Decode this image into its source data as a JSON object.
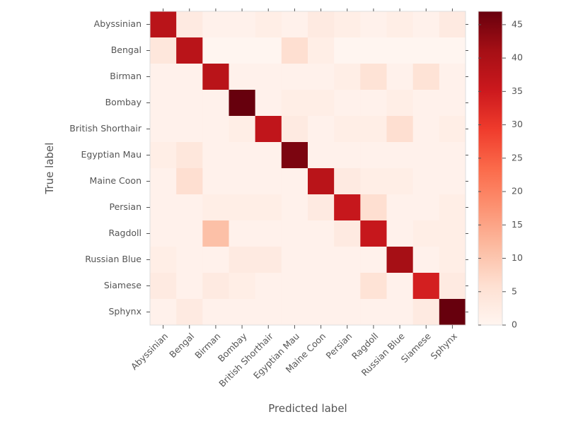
{
  "chart_data": {
    "type": "heatmap",
    "title": "",
    "xlabel": "Predicted label",
    "ylabel": "True label",
    "categories": [
      "Abyssinian",
      "Bengal",
      "Birman",
      "Bombay",
      "British Shorthair",
      "Egyptian Mau",
      "Maine Coon",
      "Persian",
      "Ragdoll",
      "Russian Blue",
      "Siamese",
      "Sphynx"
    ],
    "matrix": [
      [
        38,
        3,
        1,
        1,
        2,
        1,
        3,
        2,
        1,
        2,
        1,
        3
      ],
      [
        4,
        38,
        0,
        0,
        0,
        6,
        2,
        0,
        0,
        0,
        0,
        0
      ],
      [
        1,
        1,
        38,
        1,
        1,
        1,
        1,
        2,
        5,
        1,
        5,
        1
      ],
      [
        1,
        1,
        1,
        47,
        1,
        2,
        2,
        1,
        1,
        2,
        1,
        1
      ],
      [
        1,
        1,
        1,
        2,
        37,
        3,
        1,
        2,
        2,
        6,
        1,
        2
      ],
      [
        2,
        4,
        1,
        1,
        1,
        45,
        1,
        1,
        1,
        1,
        1,
        1
      ],
      [
        1,
        6,
        1,
        1,
        1,
        1,
        38,
        3,
        2,
        2,
        1,
        1
      ],
      [
        1,
        1,
        2,
        2,
        2,
        1,
        3,
        36,
        6,
        1,
        1,
        2
      ],
      [
        1,
        1,
        11,
        1,
        1,
        1,
        1,
        3,
        36,
        1,
        2,
        2
      ],
      [
        2,
        1,
        1,
        3,
        3,
        1,
        1,
        1,
        1,
        41,
        1,
        2
      ],
      [
        3,
        1,
        3,
        2,
        1,
        1,
        1,
        1,
        5,
        1,
        34,
        3
      ],
      [
        1,
        3,
        1,
        1,
        1,
        1,
        1,
        1,
        1,
        1,
        3,
        47
      ]
    ],
    "colorbar": {
      "min": 0,
      "max": 47,
      "ticks": [
        0,
        5,
        10,
        15,
        20,
        25,
        30,
        35,
        40,
        45
      ],
      "colormap": "Reds"
    },
    "grid": false
  }
}
